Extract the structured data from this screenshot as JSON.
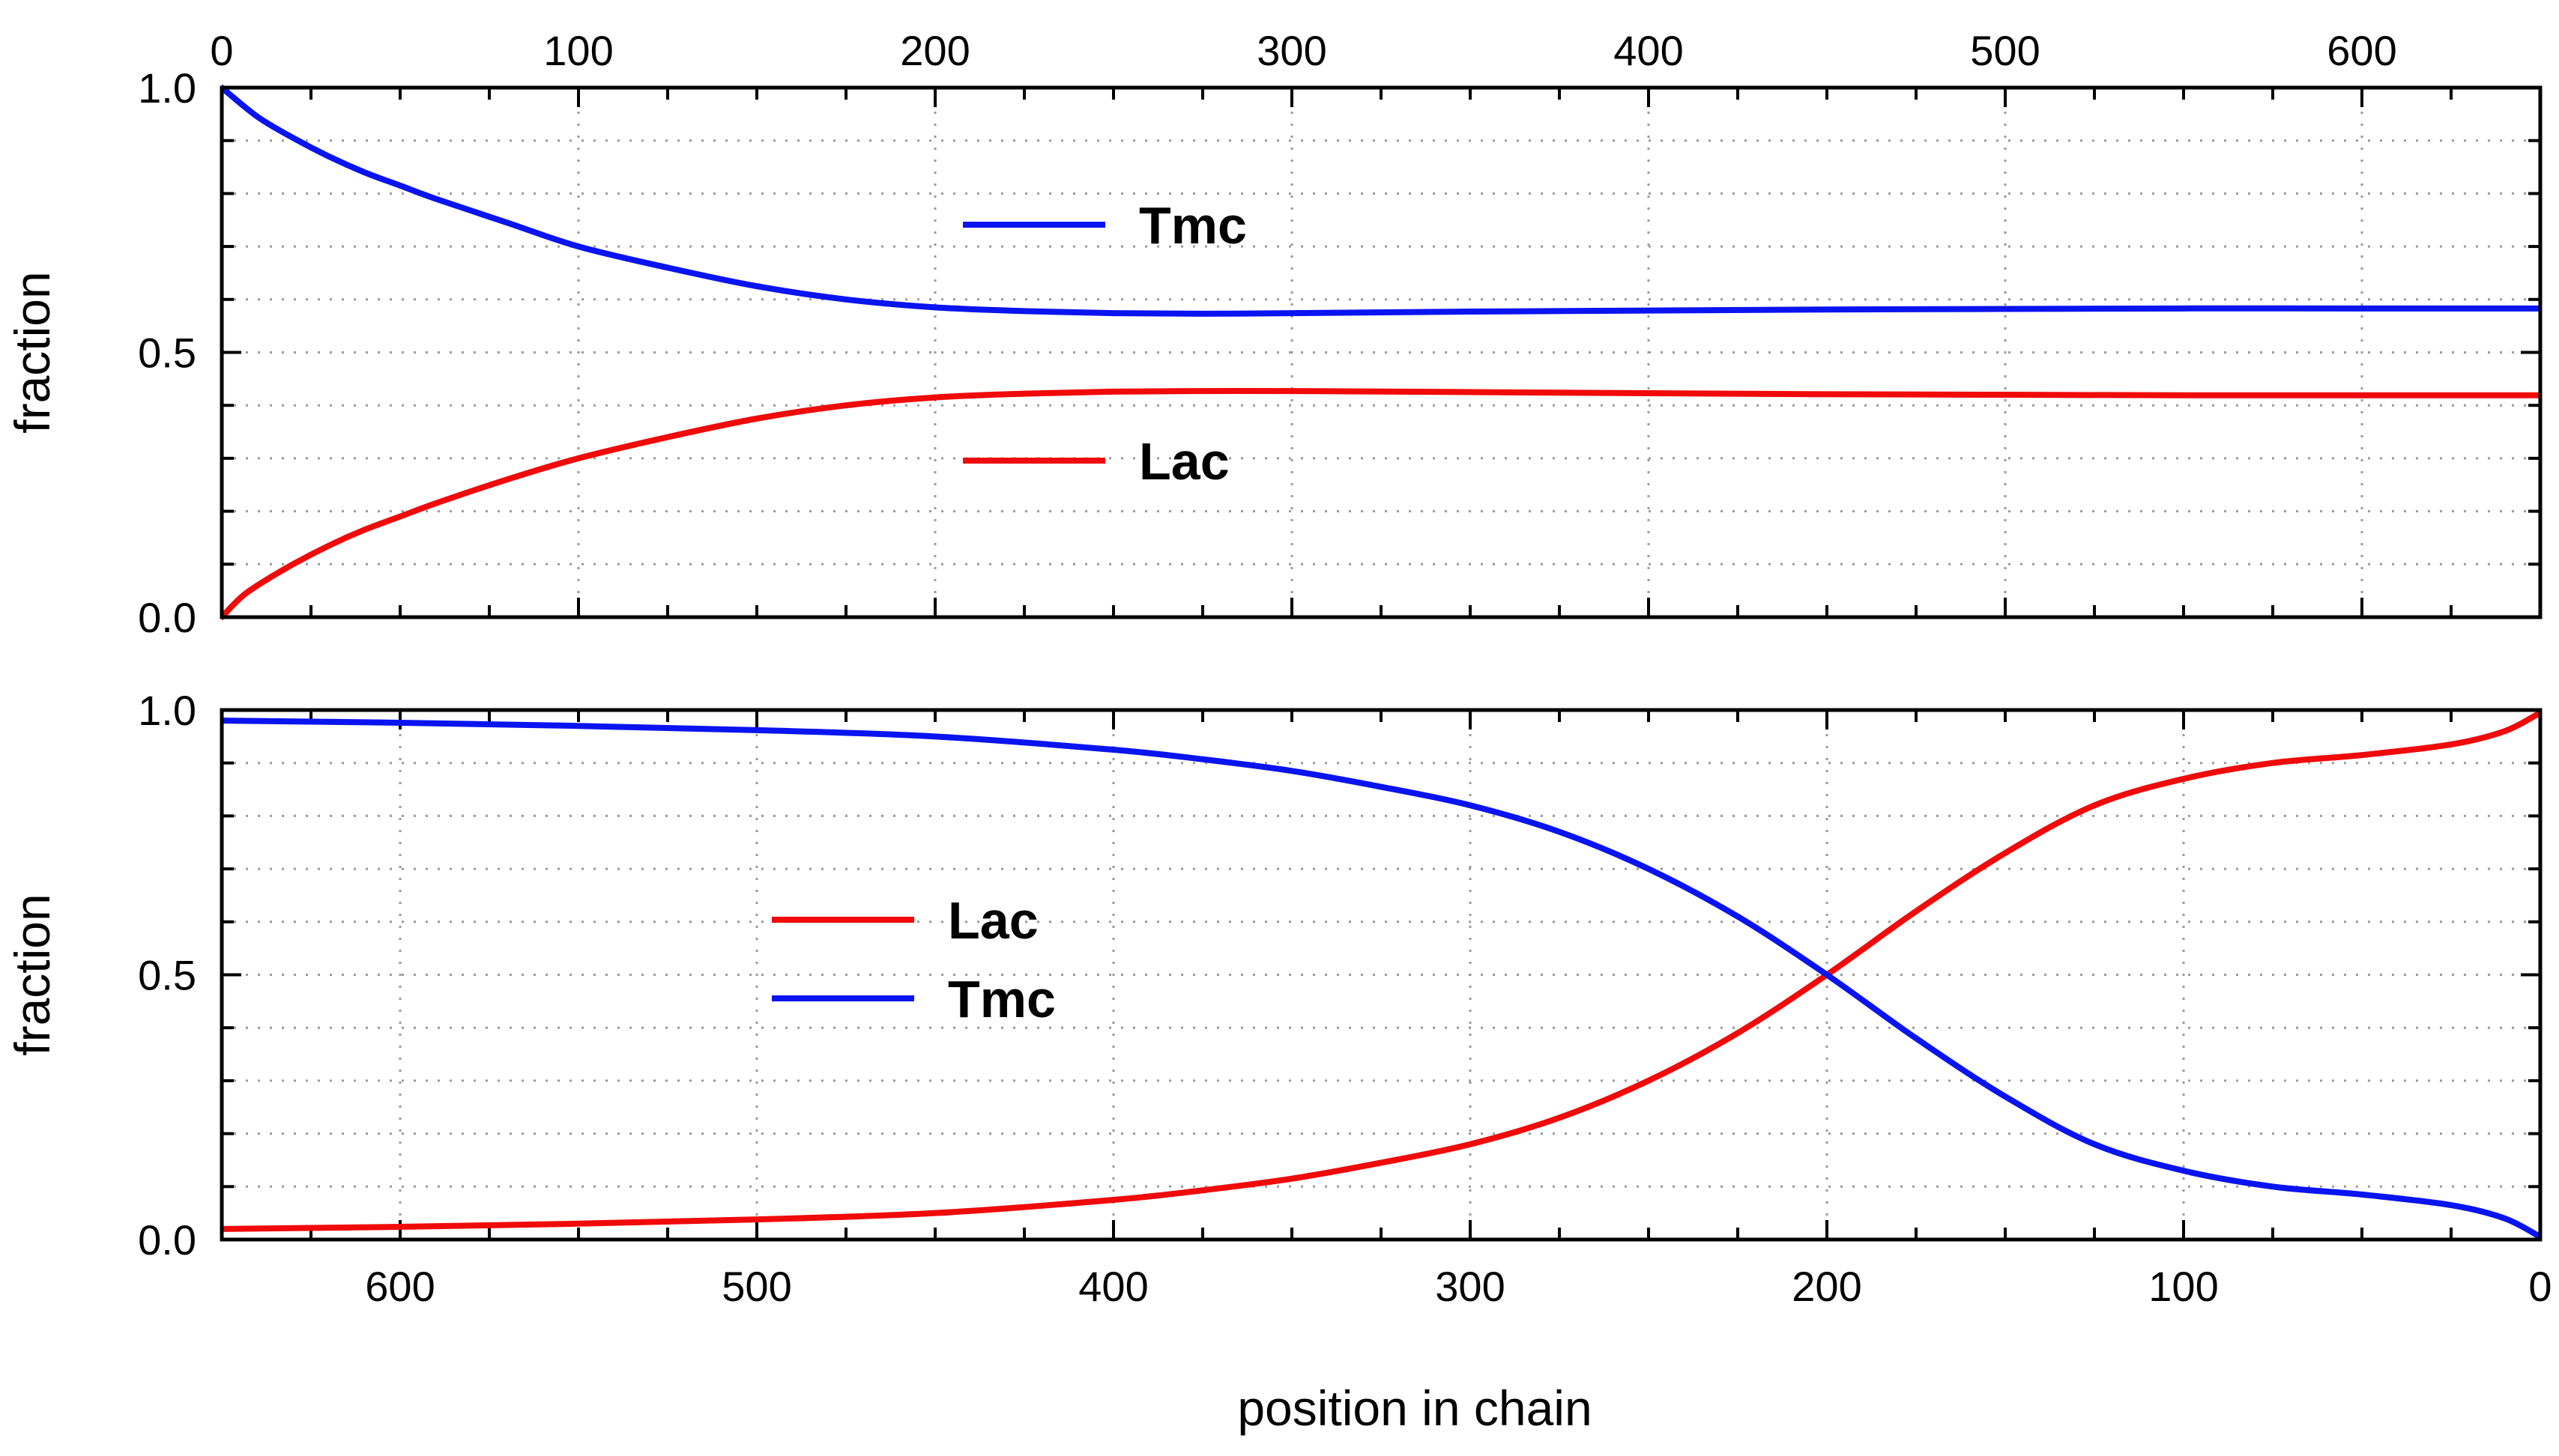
{
  "figure_title": "",
  "chart_data": [
    {
      "type": "line",
      "panel": "top",
      "title": "",
      "xlabel": "",
      "ylabel": "fraction",
      "x_axis_position": "top",
      "x_direction": "increasing",
      "xlim": [
        0,
        650
      ],
      "ylim": [
        0,
        1
      ],
      "xticks": [
        0,
        100,
        200,
        300,
        400,
        500,
        600
      ],
      "xtick_labels": [
        "0",
        "100",
        "200",
        "300",
        "400",
        "500",
        "600"
      ],
      "yticks": [
        0,
        0.5,
        1
      ],
      "ytick_labels": [
        "0.0",
        "0.5",
        "1.0"
      ],
      "grid": true,
      "legend": {
        "placement": "center",
        "entries": [
          "Tmc",
          "Lac"
        ]
      },
      "series": [
        {
          "name": "Tmc",
          "color": "#0a14f0",
          "x": [
            0,
            10,
            20,
            30,
            40,
            50,
            60,
            80,
            100,
            125,
            150,
            175,
            200,
            225,
            250,
            275,
            300,
            350,
            400,
            450,
            500,
            550,
            600,
            650
          ],
          "values": [
            1.0,
            0.945,
            0.905,
            0.87,
            0.84,
            0.815,
            0.79,
            0.745,
            0.7,
            0.66,
            0.625,
            0.6,
            0.585,
            0.578,
            0.574,
            0.573,
            0.574,
            0.577,
            0.579,
            0.581,
            0.582,
            0.583,
            0.583,
            0.583
          ]
        },
        {
          "name": "Lac",
          "color": "#f00a0a",
          "x": [
            0,
            5,
            10,
            20,
            30,
            40,
            50,
            60,
            80,
            100,
            125,
            150,
            175,
            200,
            225,
            250,
            275,
            300,
            350,
            400,
            450,
            500,
            550,
            600,
            650
          ],
          "values": [
            0.0,
            0.035,
            0.06,
            0.1,
            0.135,
            0.165,
            0.19,
            0.215,
            0.26,
            0.3,
            0.34,
            0.375,
            0.4,
            0.415,
            0.422,
            0.426,
            0.427,
            0.427,
            0.425,
            0.423,
            0.421,
            0.42,
            0.419,
            0.419,
            0.419
          ]
        }
      ]
    },
    {
      "type": "line",
      "panel": "bottom",
      "title": "",
      "xlabel": "position in chain",
      "ylabel": "fraction",
      "x_axis_position": "bottom",
      "x_direction": "decreasing",
      "xlim": [
        650,
        0
      ],
      "ylim": [
        0,
        1
      ],
      "xticks": [
        600,
        500,
        400,
        300,
        200,
        100,
        0
      ],
      "xtick_labels": [
        "600",
        "500",
        "400",
        "300",
        "200",
        "100",
        "0"
      ],
      "yticks": [
        0,
        0.5,
        1
      ],
      "ytick_labels": [
        "0.0",
        "0.5",
        "1.0"
      ],
      "grid": true,
      "legend": {
        "placement": "center-left",
        "entries": [
          "Lac",
          "Tmc"
        ]
      },
      "series": [
        {
          "name": "Lac",
          "color": "#f00a0a",
          "x": [
            650,
            600,
            550,
            500,
            450,
            400,
            375,
            350,
            325,
            300,
            275,
            250,
            225,
            200,
            175,
            150,
            125,
            100,
            75,
            50,
            25,
            10,
            0
          ],
          "values": [
            0.02,
            0.024,
            0.03,
            0.038,
            0.05,
            0.075,
            0.093,
            0.115,
            0.145,
            0.18,
            0.23,
            0.3,
            0.39,
            0.5,
            0.62,
            0.73,
            0.82,
            0.87,
            0.9,
            0.915,
            0.935,
            0.96,
            0.995
          ]
        },
        {
          "name": "Tmc",
          "color": "#0a14f0",
          "x": [
            650,
            600,
            550,
            500,
            450,
            400,
            375,
            350,
            325,
            300,
            275,
            250,
            225,
            200,
            175,
            150,
            125,
            100,
            75,
            50,
            25,
            10,
            0
          ],
          "values": [
            0.98,
            0.976,
            0.97,
            0.962,
            0.95,
            0.925,
            0.907,
            0.885,
            0.855,
            0.82,
            0.77,
            0.7,
            0.61,
            0.5,
            0.38,
            0.27,
            0.18,
            0.13,
            0.1,
            0.085,
            0.065,
            0.04,
            0.005
          ]
        }
      ]
    }
  ]
}
